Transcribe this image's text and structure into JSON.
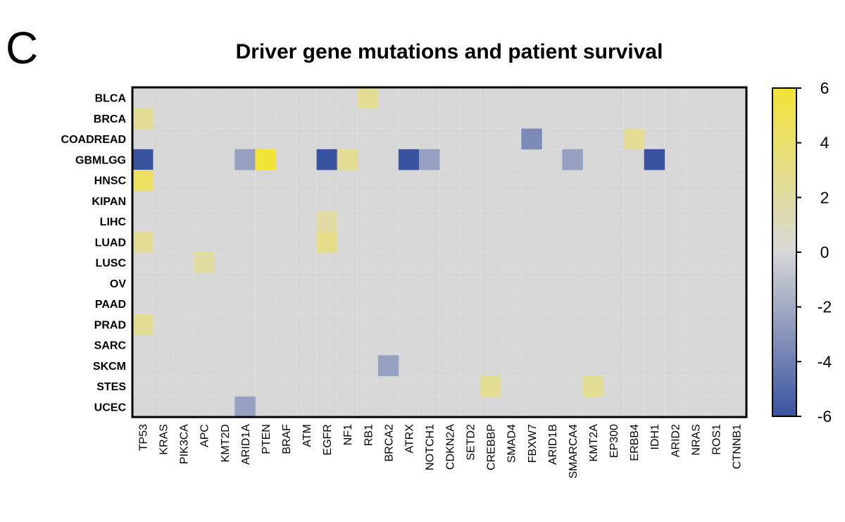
{
  "panel_label": "C",
  "colors": {
    "background_cell": "#d7d7d7",
    "grid_line": "#dedede",
    "low": "#3a539f",
    "mid": "#d7d7d7",
    "high": "#f2e337"
  },
  "chart_data": {
    "type": "heatmap",
    "title": "Driver gene mutations and patient survival",
    "xlabel": "",
    "ylabel": "",
    "rows": [
      "BLCA",
      "BRCA",
      "COADREAD",
      "GBMLGG",
      "HNSC",
      "KIPAN",
      "LIHC",
      "LUAD",
      "LUSC",
      "OV",
      "PAAD",
      "PRAD",
      "SARC",
      "SKCM",
      "STES",
      "UCEC"
    ],
    "columns": [
      "TP53",
      "KRAS",
      "PIK3CA",
      "APC",
      "KMT2D",
      "ARID1A",
      "PTEN",
      "BRAF",
      "ATM",
      "EGFR",
      "NF1",
      "RB1",
      "BRCA2",
      "ATRX",
      "NOTCH1",
      "CDKN2A",
      "SETD2",
      "CREBBP",
      "SMAD4",
      "FBXW7",
      "ARID1B",
      "SMARCA4",
      "KMT2A",
      "EP300",
      "ERBB4",
      "IDH1",
      "ARID2",
      "NRAS",
      "ROS1",
      "CTNNB1"
    ],
    "default_value": 0,
    "cells": [
      {
        "row": "BLCA",
        "col": "RB1",
        "value": 2.5
      },
      {
        "row": "BRCA",
        "col": "TP53",
        "value": 2.5
      },
      {
        "row": "COADREAD",
        "col": "FBXW7",
        "value": -3.5
      },
      {
        "row": "COADREAD",
        "col": "ERBB4",
        "value": 2.5
      },
      {
        "row": "GBMLGG",
        "col": "TP53",
        "value": -6
      },
      {
        "row": "GBMLGG",
        "col": "ARID1A",
        "value": -2.5
      },
      {
        "row": "GBMLGG",
        "col": "PTEN",
        "value": 6
      },
      {
        "row": "GBMLGG",
        "col": "EGFR",
        "value": -6
      },
      {
        "row": "GBMLGG",
        "col": "NF1",
        "value": 2.5
      },
      {
        "row": "GBMLGG",
        "col": "ATRX",
        "value": -6
      },
      {
        "row": "GBMLGG",
        "col": "NOTCH1",
        "value": -2.5
      },
      {
        "row": "GBMLGG",
        "col": "SMARCA4",
        "value": -2.5
      },
      {
        "row": "GBMLGG",
        "col": "IDH1",
        "value": -6
      },
      {
        "row": "HNSC",
        "col": "TP53",
        "value": 4.5
      },
      {
        "row": "LIHC",
        "col": "EGFR",
        "value": 2
      },
      {
        "row": "LUAD",
        "col": "TP53",
        "value": 2.5
      },
      {
        "row": "LUAD",
        "col": "EGFR",
        "value": 3
      },
      {
        "row": "LUSC",
        "col": "APC",
        "value": 2
      },
      {
        "row": "PRAD",
        "col": "TP53",
        "value": 2.5
      },
      {
        "row": "SKCM",
        "col": "BRCA2",
        "value": -2.5
      },
      {
        "row": "STES",
        "col": "CREBBP",
        "value": 2.5
      },
      {
        "row": "STES",
        "col": "KMT2A",
        "value": 2.5
      },
      {
        "row": "UCEC",
        "col": "ARID1A",
        "value": -2.5
      }
    ],
    "colorbar": {
      "min": -6,
      "max": 6,
      "ticks": [
        -6,
        -4,
        -2,
        0,
        2,
        4,
        6
      ],
      "tick_labels": [
        "-6",
        "-4",
        "-2",
        "0",
        "2",
        "4",
        "6"
      ]
    }
  }
}
